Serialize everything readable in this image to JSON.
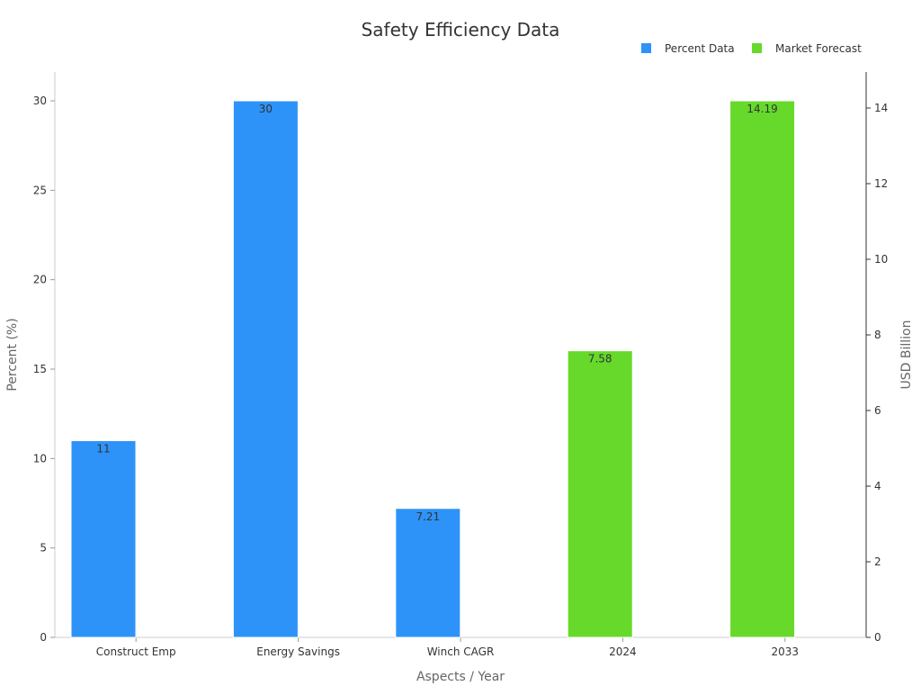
{
  "chart_data": {
    "type": "bar",
    "title": "Safety Efficiency Data",
    "xlabel": "Aspects / Year",
    "ylabel_left": "Percent (%)",
    "ylabel_right": "USD Billion",
    "categories": [
      "Construct Emp",
      "Energy Savings",
      "Winch CAGR",
      "2024",
      "2033"
    ],
    "left_axis": {
      "min": 0,
      "max": 30,
      "ticks": [
        0,
        5,
        10,
        15,
        20,
        25,
        30
      ]
    },
    "right_axis": {
      "min": 0,
      "max": 14.19,
      "ticks": [
        0,
        2,
        4,
        6,
        8,
        10,
        12,
        14
      ]
    },
    "grid": false,
    "legend_position": "top-right",
    "series": [
      {
        "name": "Percent Data",
        "axis": "left",
        "color": "#2E93F8",
        "values": [
          11,
          30,
          7.21,
          null,
          null
        ],
        "labels": [
          "11",
          "30",
          "7.21",
          "",
          ""
        ]
      },
      {
        "name": "Market Forecast",
        "axis": "right",
        "color": "#66D92A",
        "values": [
          null,
          null,
          null,
          7.58,
          14.19
        ],
        "labels": [
          "",
          "",
          "",
          "7.58",
          "14.19"
        ]
      }
    ]
  }
}
